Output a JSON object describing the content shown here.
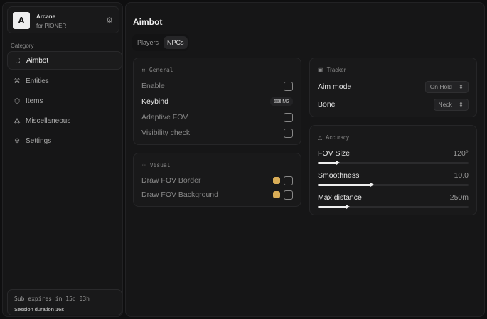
{
  "sidebar": {
    "brand": {
      "logo": "A",
      "name": "Arcane",
      "subtitle": "for PIONER"
    },
    "category_label": "Category",
    "items": [
      {
        "label": "Aimbot",
        "icon": "crosshair-icon",
        "active": true
      },
      {
        "label": "Entities",
        "icon": "entities-icon"
      },
      {
        "label": "Items",
        "icon": "cube-icon"
      },
      {
        "label": "Miscellaneous",
        "icon": "grid-icon"
      },
      {
        "label": "Settings",
        "icon": "gear-icon"
      }
    ],
    "footer": {
      "expires": "Sub expires in 15d 03h",
      "session": "Session duration 16s"
    }
  },
  "main": {
    "title": "Aimbot",
    "tabs": [
      {
        "label": "Players"
      },
      {
        "label": "NPCs",
        "active": true
      }
    ],
    "general": {
      "title": "General",
      "enable": "Enable",
      "keybind": "Keybind",
      "keybind_value": "M2",
      "adaptive_fov": "Adaptive FOV",
      "visibility_check": "Visibility check"
    },
    "visual": {
      "title": "Visual",
      "draw_border": "Draw FOV Border",
      "draw_background": "Draw FOV Background",
      "color": "#d9ad57"
    },
    "tracker": {
      "title": "Tracker",
      "aim_mode": "Aim mode",
      "aim_mode_value": "On Hold",
      "bone": "Bone",
      "bone_value": "Neck"
    },
    "accuracy": {
      "title": "Accuracy",
      "sliders": [
        {
          "label": "FOV Size",
          "value": "120°",
          "fraction": 0.13
        },
        {
          "label": "Smoothness",
          "value": "10.0",
          "fraction": 0.36
        },
        {
          "label": "Max distance",
          "value": "250m",
          "fraction": 0.2
        }
      ]
    }
  }
}
